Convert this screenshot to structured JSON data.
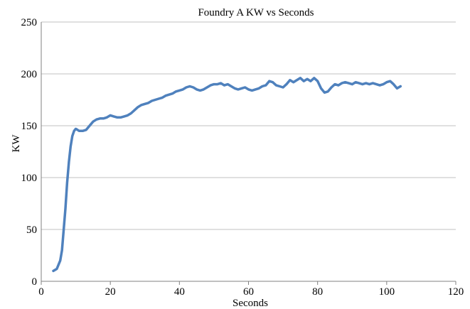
{
  "chart_data": {
    "type": "line",
    "title": "Foundry A KW vs Seconds",
    "xlabel": "Seconds",
    "ylabel": "KW",
    "xlim": [
      0,
      120
    ],
    "ylim": [
      0,
      250
    ],
    "x_ticks": [
      "0",
      "20",
      "40",
      "60",
      "80",
      "100",
      "120"
    ],
    "y_ticks": [
      "0",
      "50",
      "100",
      "150",
      "200",
      "250"
    ],
    "grid": "horizontal",
    "legend": "none",
    "colors": {
      "line": "#4f81bd",
      "grid": "#c0c0c0",
      "axis": "#808080",
      "text": "#000000"
    },
    "series": [
      {
        "x": [
          3.5,
          4.5,
          5.5,
          6,
          6.5,
          7,
          7.5,
          8,
          8.5,
          9,
          9.5,
          10,
          10.5,
          11,
          12,
          13,
          14,
          15,
          16,
          17,
          18,
          19,
          20,
          21,
          22,
          23,
          24,
          25,
          26,
          27,
          28,
          29,
          30,
          31,
          32,
          33,
          34,
          35,
          36,
          37,
          38,
          39,
          40,
          41,
          42,
          43,
          44,
          45,
          46,
          47,
          48,
          49,
          50,
          51,
          52,
          53,
          54,
          55,
          56,
          57,
          58,
          59,
          60,
          61,
          62,
          63,
          64,
          65,
          66,
          67,
          68,
          69,
          70,
          71,
          72,
          73,
          74,
          75,
          76,
          77,
          78,
          79,
          80,
          81,
          82,
          83,
          84,
          85,
          86,
          87,
          88,
          89,
          90,
          91,
          92,
          93,
          94,
          95,
          96,
          97,
          98,
          99,
          100,
          101,
          102,
          103,
          104
        ],
        "y": [
          10,
          12,
          20,
          30,
          50,
          70,
          95,
          115,
          130,
          140,
          145,
          147,
          146,
          145,
          145,
          146,
          150,
          154,
          156,
          157,
          157,
          158,
          160,
          159,
          158,
          158,
          159,
          160,
          162,
          165,
          168,
          170,
          171,
          172,
          174,
          175,
          176,
          177,
          179,
          180,
          181,
          183,
          184,
          185,
          187,
          188,
          187,
          185,
          184,
          185,
          187,
          189,
          190,
          190,
          191,
          189,
          190,
          188,
          186,
          185,
          186,
          187,
          185,
          184,
          185,
          186,
          188,
          189,
          193,
          192,
          189,
          188,
          187,
          190,
          194,
          192,
          194,
          196,
          193,
          195,
          193,
          196,
          193,
          186,
          182,
          183,
          187,
          190,
          189,
          191,
          192,
          191,
          190,
          192,
          191,
          190,
          191,
          190,
          191,
          190,
          189,
          190,
          192,
          193,
          190,
          186,
          188
        ]
      }
    ]
  }
}
